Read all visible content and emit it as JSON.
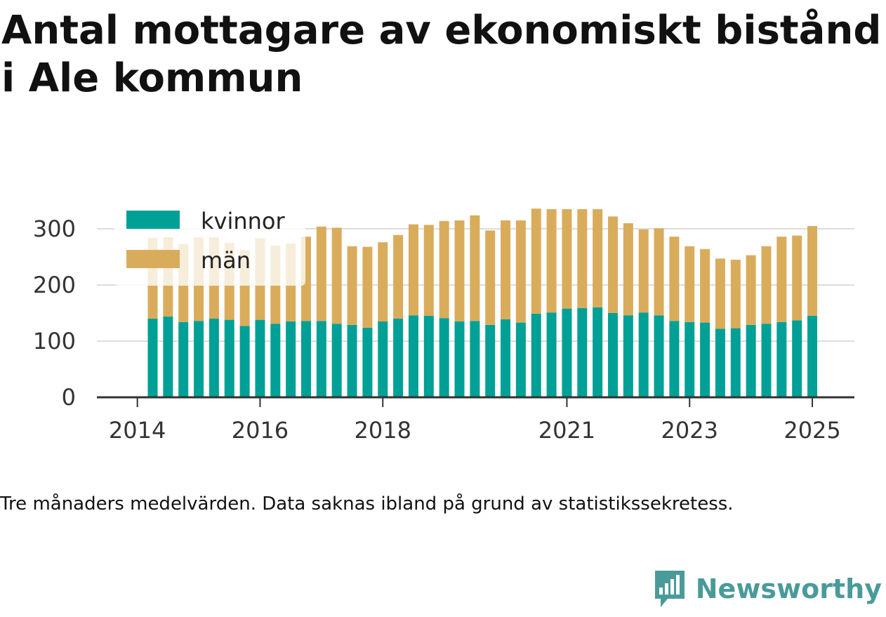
{
  "title": "Antal mottagare av ekonomiskt bistånd i Ale kommun",
  "caption": "Tre månaders medelvärden. Data saknas ibland på grund av statistikssekretess.",
  "brand": {
    "name": "Newsworthy",
    "logo_icon": "newsworthy-logo-icon"
  },
  "colors": {
    "kvinnor": "#00a096",
    "man": "#d9ac5c",
    "grid": "#dddddd",
    "axis": "#333333"
  },
  "chart_data": {
    "type": "bar",
    "stacked": true,
    "x_unit": "quarter",
    "x": [
      "2014-04",
      "2014-07",
      "2014-10",
      "2015-01",
      "2015-04",
      "2015-07",
      "2015-10",
      "2016-01",
      "2016-04",
      "2016-07",
      "2016-10",
      "2017-01",
      "2017-04",
      "2017-07",
      "2017-10",
      "2018-01",
      "2018-04",
      "2018-07",
      "2018-10",
      "2019-01",
      "2019-04",
      "2019-07",
      "2019-10",
      "2020-01",
      "2020-04",
      "2020-07",
      "2020-10",
      "2021-01",
      "2021-04",
      "2021-07",
      "2021-10",
      "2022-01",
      "2022-04",
      "2022-07",
      "2022-10",
      "2023-01",
      "2023-04",
      "2023-07",
      "2023-10",
      "2024-01",
      "2024-04",
      "2024-07",
      "2024-10",
      "2025-01"
    ],
    "series": [
      {
        "name": "kvinnor",
        "values": [
          140,
          144,
          134,
          136,
          140,
          138,
          127,
          138,
          131,
          135,
          136,
          136,
          131,
          129,
          124,
          135,
          140,
          146,
          145,
          141,
          135,
          136,
          129,
          139,
          133,
          149,
          151,
          158,
          159,
          160,
          150,
          146,
          151,
          146,
          136,
          134,
          133,
          122,
          123,
          129,
          131,
          134,
          137,
          145
        ]
      },
      {
        "name": "män",
        "values": [
          144,
          141,
          139,
          149,
          145,
          137,
          135,
          145,
          139,
          139,
          150,
          168,
          171,
          140,
          144,
          141,
          149,
          162,
          162,
          173,
          180,
          188,
          168,
          176,
          182,
          187,
          184,
          177,
          176,
          175,
          172,
          164,
          148,
          155,
          150,
          135,
          131,
          125,
          122,
          124,
          138,
          152,
          151,
          160
        ]
      }
    ],
    "ylim": [
      0,
      340
    ],
    "yticks": [
      0,
      100,
      200,
      300
    ],
    "yticklabels": [
      "0",
      "100",
      "200",
      "300"
    ],
    "xticks": [
      "2014",
      "2016",
      "2018",
      "2021",
      "2023",
      "2025"
    ],
    "legend": {
      "position": "top-left",
      "entries": [
        "kvinnor",
        "män"
      ]
    },
    "grid": true
  }
}
